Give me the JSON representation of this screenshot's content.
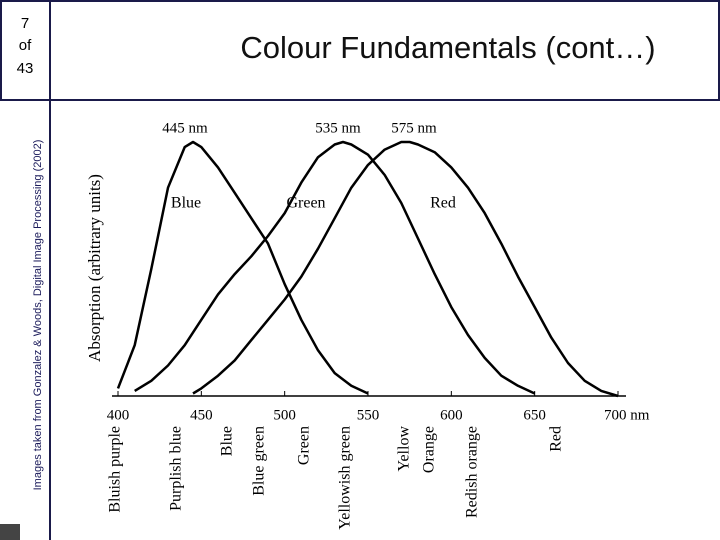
{
  "slide": {
    "number": "7",
    "of": "of",
    "total": "43",
    "title": "Colour Fundamentals (cont…)",
    "credit": "Images taken from Gonzalez & Woods, Digital Image Processing (2002)"
  },
  "chart_data": {
    "type": "line",
    "ylabel": "Absorption (arbitrary units)",
    "xlim": [
      400,
      700
    ],
    "ylim": [
      0,
      1
    ],
    "xticks": [
      400,
      450,
      500,
      550,
      600,
      650,
      {
        "value": 700,
        "label": "700 nm"
      }
    ],
    "color": "#000000",
    "annotations": [
      "445 nm",
      "535 nm",
      "575 nm"
    ],
    "color_names": [
      "Bluish purple",
      "Purplish blue",
      "Blue",
      "Blue green",
      "Green",
      "Yellowish green",
      "Yellow",
      "Orange",
      "Redish orange",
      "Red"
    ],
    "series": [
      {
        "name": "Blue",
        "x": [
          400,
          410,
          420,
          430,
          440,
          445,
          450,
          460,
          470,
          480,
          490,
          500,
          510,
          520,
          530,
          540,
          550
        ],
        "values": [
          0.03,
          0.2,
          0.5,
          0.82,
          0.98,
          1.0,
          0.98,
          0.9,
          0.8,
          0.7,
          0.6,
          0.44,
          0.3,
          0.18,
          0.09,
          0.04,
          0.01
        ]
      },
      {
        "name": "Green",
        "x": [
          410,
          420,
          430,
          440,
          450,
          460,
          470,
          480,
          490,
          500,
          510,
          520,
          530,
          535,
          540,
          550,
          560,
          570,
          580,
          590,
          600,
          610,
          620,
          630,
          640,
          650
        ],
        "values": [
          0.02,
          0.06,
          0.12,
          0.2,
          0.3,
          0.4,
          0.48,
          0.55,
          0.63,
          0.72,
          0.84,
          0.94,
          0.99,
          1.0,
          0.99,
          0.95,
          0.87,
          0.76,
          0.62,
          0.48,
          0.35,
          0.24,
          0.15,
          0.08,
          0.04,
          0.01
        ]
      },
      {
        "name": "Red",
        "x": [
          445,
          450,
          460,
          470,
          480,
          490,
          500,
          510,
          520,
          530,
          540,
          550,
          560,
          570,
          575,
          580,
          590,
          600,
          610,
          620,
          630,
          640,
          650,
          660,
          670,
          680,
          690,
          700
        ],
        "values": [
          0.01,
          0.03,
          0.08,
          0.14,
          0.22,
          0.3,
          0.38,
          0.47,
          0.58,
          0.7,
          0.82,
          0.91,
          0.97,
          1.0,
          1.0,
          0.99,
          0.96,
          0.9,
          0.82,
          0.72,
          0.6,
          0.47,
          0.35,
          0.23,
          0.13,
          0.06,
          0.02,
          0.0
        ]
      }
    ]
  }
}
